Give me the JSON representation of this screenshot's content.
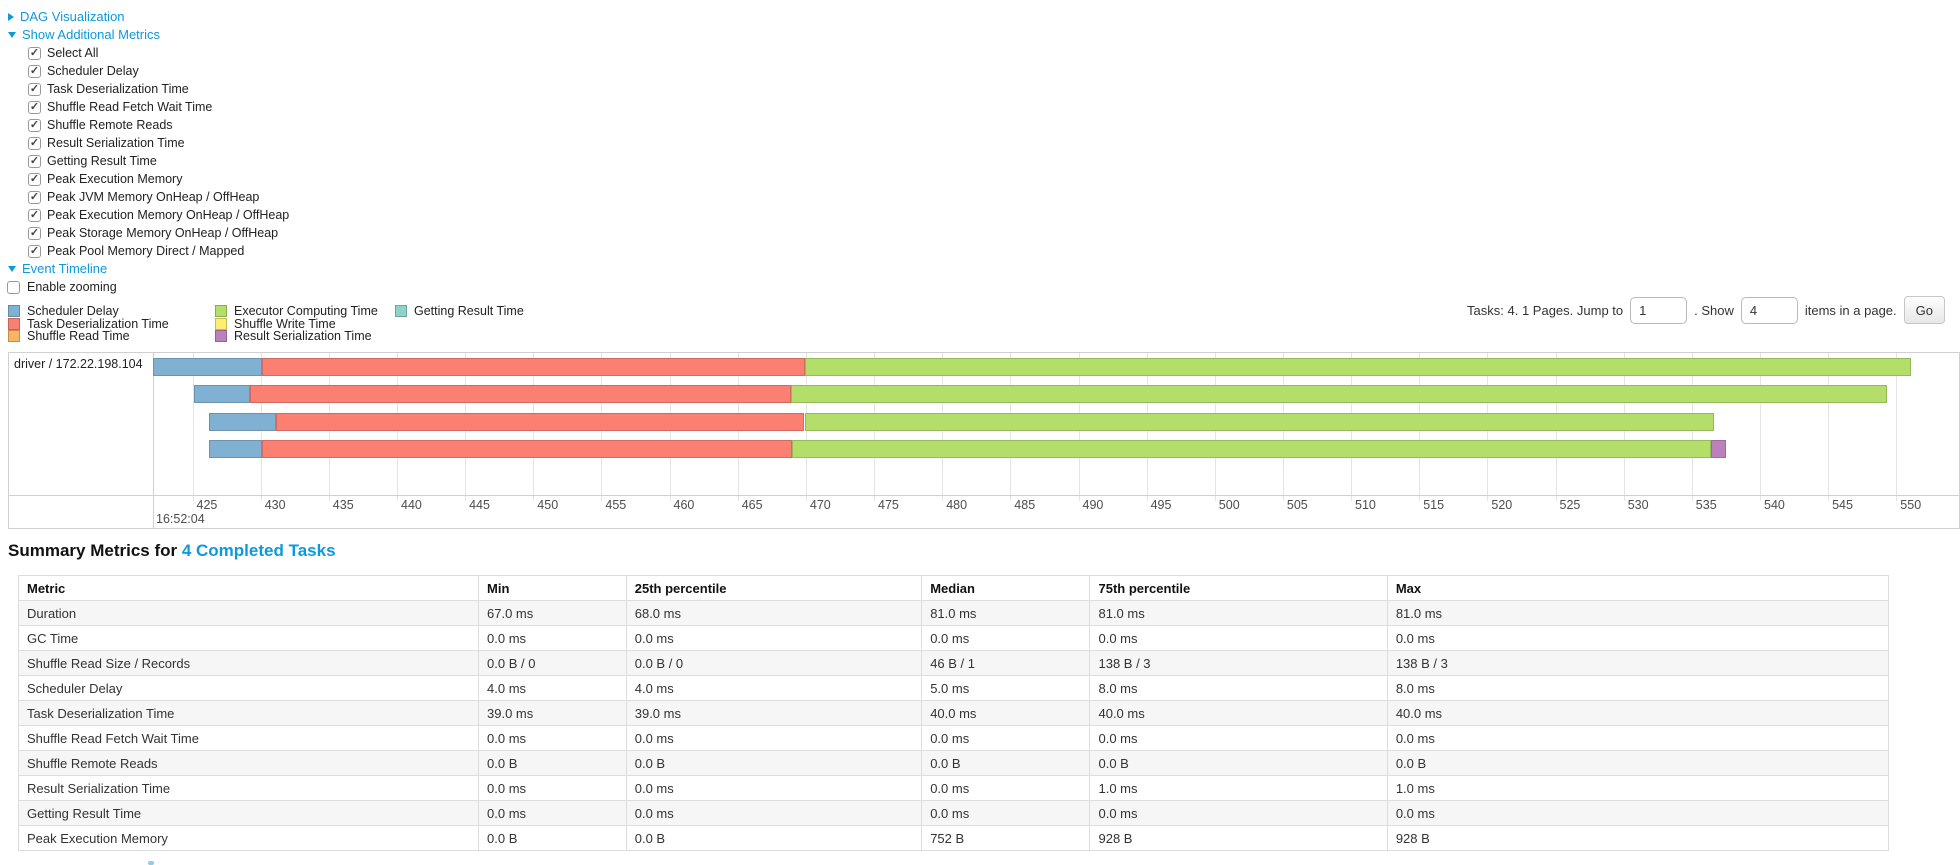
{
  "sections": {
    "dag": "DAG Visualization",
    "metrics": "Show Additional Metrics",
    "timeline": "Event Timeline",
    "enable_zooming": "Enable zooming"
  },
  "metrics_checkboxes": [
    "Select All",
    "Scheduler Delay",
    "Task Deserialization Time",
    "Shuffle Read Fetch Wait Time",
    "Shuffle Remote Reads",
    "Result Serialization Time",
    "Getting Result Time",
    "Peak Execution Memory",
    "Peak JVM Memory OnHeap / OffHeap",
    "Peak Execution Memory OnHeap / OffHeap",
    "Peak Storage Memory OnHeap / OffHeap",
    "Peak Pool Memory Direct / Mapped"
  ],
  "pagination": {
    "tasks_info": "Tasks: 4. 1 Pages. Jump to",
    "jump_value": "1",
    "show_label": ". Show",
    "show_value": "4",
    "items_label": "items in a page.",
    "go_label": "Go"
  },
  "colors": {
    "scheduler_delay": "#80B1D3",
    "task_deserialization": "#FB8072",
    "shuffle_read": "#FDB462",
    "executor_computing": "#B3DE69",
    "shuffle_write": "#FFED6F",
    "result_serialization": "#BC80BD",
    "getting_result": "#8DD3C7",
    "link_blue": "#0d99dc"
  },
  "legend": {
    "columns": [
      [
        {
          "key": "scheduler_delay",
          "label": "Scheduler Delay"
        },
        {
          "key": "task_deserialization",
          "label": "Task Deserialization Time"
        },
        {
          "key": "shuffle_read",
          "label": "Shuffle Read Time"
        }
      ],
      [
        {
          "key": "executor_computing",
          "label": "Executor Computing Time"
        },
        {
          "key": "shuffle_write",
          "label": "Shuffle Write Time"
        },
        {
          "key": "result_serialization",
          "label": "Result Serialization Time"
        }
      ],
      [
        {
          "key": "getting_result",
          "label": "Getting Result Time"
        }
      ]
    ]
  },
  "timeline": {
    "executor_label": "driver / 172.22.198.104",
    "axis": {
      "tick_min": 425,
      "tick_max": 550,
      "tick_step": 5,
      "start_time_label": "16:52:04",
      "unit": "ms"
    },
    "tasks": [
      {
        "segments": [
          {
            "type": "scheduler_delay",
            "start": 422.1,
            "end": 430.1
          },
          {
            "type": "task_deserialization",
            "start": 430.1,
            "end": 469.9
          },
          {
            "type": "executor_computing",
            "start": 469.9,
            "end": 551.1
          }
        ]
      },
      {
        "segments": [
          {
            "type": "scheduler_delay",
            "start": 425.1,
            "end": 429.2
          },
          {
            "type": "task_deserialization",
            "start": 429.2,
            "end": 468.9
          },
          {
            "type": "executor_computing",
            "start": 468.9,
            "end": 549.3
          }
        ]
      },
      {
        "segments": [
          {
            "type": "scheduler_delay",
            "start": 426.2,
            "end": 431.1
          },
          {
            "type": "task_deserialization",
            "start": 431.1,
            "end": 469.9
          },
          {
            "type": "executor_computing",
            "start": 469.9,
            "end": 536.6
          }
        ]
      },
      {
        "segments": [
          {
            "type": "scheduler_delay",
            "start": 426.2,
            "end": 430.1
          },
          {
            "type": "task_deserialization",
            "start": 430.1,
            "end": 469.0
          },
          {
            "type": "executor_computing",
            "start": 469.0,
            "end": 536.4
          },
          {
            "type": "result_serialization",
            "start": 536.4,
            "end": 537.5
          }
        ]
      }
    ]
  },
  "summary": {
    "title_prefix": "Summary Metrics for ",
    "title_link": "4 Completed Tasks",
    "columns": [
      "Metric",
      "Min",
      "25th percentile",
      "Median",
      "75th percentile",
      "Max"
    ],
    "rows": [
      {
        "metric": "Duration",
        "values": [
          "67.0 ms",
          "68.0 ms",
          "81.0 ms",
          "81.0 ms",
          "81.0 ms"
        ]
      },
      {
        "metric": "GC Time",
        "values": [
          "0.0 ms",
          "0.0 ms",
          "0.0 ms",
          "0.0 ms",
          "0.0 ms"
        ]
      },
      {
        "metric": "Shuffle Read Size / Records",
        "values": [
          "0.0 B / 0",
          "0.0 B / 0",
          "46 B / 1",
          "138 B / 3",
          "138 B / 3"
        ]
      },
      {
        "metric": "Scheduler Delay",
        "values": [
          "4.0 ms",
          "4.0 ms",
          "5.0 ms",
          "8.0 ms",
          "8.0 ms"
        ]
      },
      {
        "metric": "Task Deserialization Time",
        "values": [
          "39.0 ms",
          "39.0 ms",
          "40.0 ms",
          "40.0 ms",
          "40.0 ms"
        ]
      },
      {
        "metric": "Shuffle Read Fetch Wait Time",
        "values": [
          "0.0 ms",
          "0.0 ms",
          "0.0 ms",
          "0.0 ms",
          "0.0 ms"
        ]
      },
      {
        "metric": "Shuffle Remote Reads",
        "values": [
          "0.0 B",
          "0.0 B",
          "0.0 B",
          "0.0 B",
          "0.0 B"
        ]
      },
      {
        "metric": "Result Serialization Time",
        "values": [
          "0.0 ms",
          "0.0 ms",
          "0.0 ms",
          "1.0 ms",
          "1.0 ms"
        ]
      },
      {
        "metric": "Getting Result Time",
        "values": [
          "0.0 ms",
          "0.0 ms",
          "0.0 ms",
          "0.0 ms",
          "0.0 ms"
        ]
      },
      {
        "metric": "Peak Execution Memory",
        "values": [
          "0.0 B",
          "0.0 B",
          "752 B",
          "928 B",
          "928 B"
        ]
      }
    ]
  }
}
